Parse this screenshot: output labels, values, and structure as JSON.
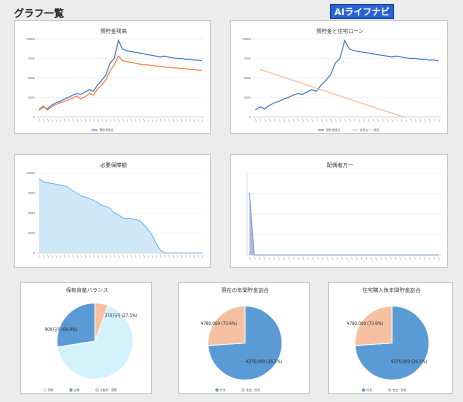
{
  "page": {
    "title": "グラフ一覧",
    "brand": "AIライフナビ"
  },
  "colors": {
    "blue": "#3d72c5",
    "orange": "#f07b3f",
    "lightOrange": "#f6b896",
    "areaBlue": "#5aa8e0",
    "areaFill": "#c8e3f6",
    "pieBlue": "#5b9bd5",
    "piePeach": "#f6c0a2",
    "pieCyan": "#d4f2fb"
  },
  "chart_data": [
    {
      "type": "line",
      "title": "預貯金残高",
      "yticks": [
        "10000",
        "7500",
        "5000",
        "2500",
        "0"
      ],
      "ylim": [
        0,
        10000
      ],
      "xcount": 40,
      "series": [
        {
          "name": "預貯金残高",
          "color": "#3d72c5",
          "values": [
            900,
            1300,
            1050,
            1500,
            1800,
            2000,
            2300,
            2500,
            2800,
            3000,
            2900,
            3200,
            3500,
            3300,
            4100,
            4700,
            5400,
            6900,
            7500,
            9800,
            8700,
            8500,
            8400,
            8300,
            8200,
            8100,
            8000,
            7900,
            7800,
            7700,
            7800,
            7700,
            7600,
            7500,
            7500,
            7400,
            7400,
            7300,
            7300,
            7200
          ]
        },
        {
          "name": "",
          "color": "#f07b3f",
          "values": [
            1000,
            1400,
            900,
            1300,
            1600,
            1800,
            2000,
            2200,
            2400,
            2700,
            2300,
            2600,
            3000,
            2800,
            3600,
            4100,
            4800,
            5900,
            6700,
            7800,
            7200,
            7100,
            7000,
            6900,
            6800,
            6700,
            6700,
            6600,
            6500,
            6500,
            6400,
            6400,
            6300,
            6300,
            6200,
            6200,
            6100,
            6100,
            6000,
            6000
          ]
        }
      ]
    },
    {
      "type": "line",
      "title": "預貯金と住宅ローン",
      "yticks": [
        "10000",
        "7500",
        "5000",
        "2500",
        "0"
      ],
      "ylim": [
        0,
        10000
      ],
      "xcount": 40,
      "series": [
        {
          "name": "預貯金残高",
          "color": "#3d72c5",
          "values": [
            900,
            1300,
            1050,
            1500,
            1800,
            2000,
            2300,
            2500,
            2800,
            3000,
            2900,
            3200,
            3500,
            3300,
            4100,
            4700,
            5400,
            6900,
            7500,
            9800,
            8700,
            8500,
            8400,
            8300,
            8200,
            8100,
            8000,
            7900,
            7800,
            7700,
            7800,
            7700,
            7600,
            7500,
            7500,
            7400,
            7400,
            7300,
            7300,
            7200
          ]
        },
        {
          "name": "住宅ローン残高",
          "color": "#f6b896",
          "values": [
            null,
            6100,
            5900,
            5700,
            5500,
            5300,
            5100,
            4900,
            4700,
            4500,
            4300,
            4100,
            3900,
            3700,
            3500,
            3300,
            3100,
            2900,
            2700,
            2500,
            2300,
            2100,
            1900,
            1700,
            1500,
            1300,
            1100,
            900,
            700,
            500,
            300,
            100,
            0,
            null,
            null,
            null,
            null,
            null,
            null,
            null
          ]
        }
      ]
    },
    {
      "type": "area",
      "title": "必要保障額",
      "yticks": [
        "10000",
        "7500",
        "5000",
        "2500",
        "0"
      ],
      "ylim": [
        0,
        10000
      ],
      "xcount": 40,
      "series": [
        {
          "name": "",
          "color": "#5aa8e0",
          "values": [
            9300,
            8900,
            8800,
            8700,
            8600,
            8500,
            8400,
            8200,
            7800,
            7500,
            7200,
            7000,
            6800,
            6600,
            6300,
            6000,
            5800,
            5600,
            5000,
            4800,
            4400,
            4300,
            4300,
            4200,
            4100,
            3600,
            3000,
            2300,
            1200,
            400,
            0,
            0,
            0,
            0,
            0,
            0,
            0,
            0,
            0,
            0
          ]
        }
      ]
    },
    {
      "type": "area",
      "title": "配偶者万一",
      "yticks": [
        "",
        "",
        "",
        "",
        ""
      ],
      "ylim": [
        0,
        10000
      ],
      "xcount": 40,
      "series": [
        {
          "name": "",
          "color": "#6f8fc2",
          "values": [
            7600,
            0,
            0,
            0,
            0,
            0,
            0,
            0,
            0,
            0,
            0,
            0,
            0,
            0,
            0,
            0,
            0,
            0,
            0,
            0,
            0,
            0,
            0,
            0,
            0,
            0,
            0,
            0,
            0,
            0,
            0,
            0,
            0,
            0,
            0,
            0,
            0,
            0,
            0,
            0
          ]
        }
      ]
    },
    {
      "type": "pie",
      "title": "保有資産バランス",
      "slices": [
        {
          "name": "預金",
          "value": 66.9,
          "color": "#d4f2fb",
          "label": "900万円 (66.9%)"
        },
        {
          "name": "証券",
          "value": 27.5,
          "color": "#5b9bd5",
          "label": "370万円 (27.5%)"
        },
        {
          "name": "不動産・保険",
          "value": 5.6,
          "color": "#f6c0a2",
          "label": ""
        }
      ]
    },
    {
      "type": "pie",
      "title": "現在の年間貯金割合",
      "slices": [
        {
          "name": "貯金",
          "value": 73.9,
          "color": "#5b9bd5",
          "label": "¥780,000 (73.9%)"
        },
        {
          "name": "支出・投資",
          "value": 26.1,
          "color": "#f6c0a2",
          "label": "¥276,000 (26.1%)"
        }
      ]
    },
    {
      "type": "pie",
      "title": "住宅購入後年間貯金割合",
      "slices": [
        {
          "name": "貯金",
          "value": 73.9,
          "color": "#5b9bd5",
          "label": "¥780,000 (73.9%)"
        },
        {
          "name": "支出・投資",
          "value": 26.1,
          "color": "#f6c0a2",
          "label": "¥276,000 (26.1%)"
        }
      ]
    }
  ]
}
